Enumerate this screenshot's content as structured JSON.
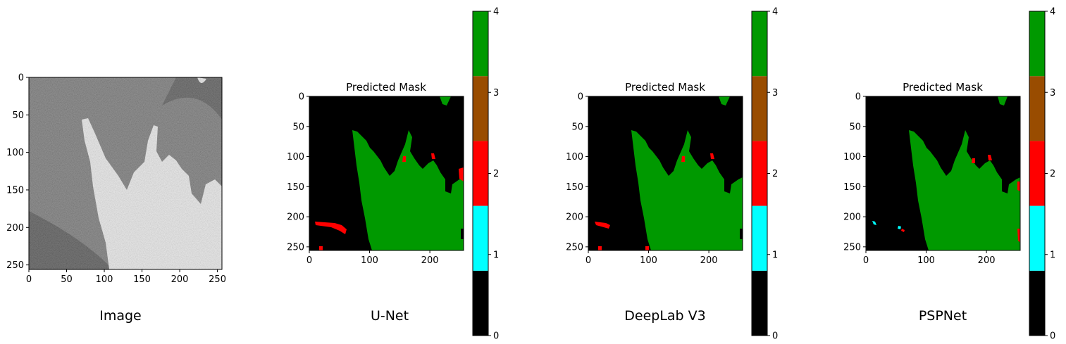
{
  "chart_data": [
    {
      "type": "image",
      "caption": "Image",
      "title": "",
      "xlim": [
        0,
        256
      ],
      "ylim": [
        0,
        256
      ],
      "xticks": [
        0,
        50,
        100,
        150,
        200,
        250
      ],
      "yticks": [
        0,
        50,
        100,
        150,
        200,
        250
      ],
      "content": "grayscale SAR image"
    },
    {
      "type": "heatmap",
      "caption": "U-Net",
      "title": "Predicted Mask",
      "xlim": [
        0,
        256
      ],
      "ylim": [
        0,
        256
      ],
      "xticks": [
        0,
        100,
        200
      ],
      "yticks": [
        0,
        50,
        100,
        150,
        200,
        250
      ],
      "colorbar": {
        "min": 0,
        "max": 4,
        "ticks": [
          0,
          1,
          2,
          3,
          4
        ],
        "colors": [
          "#000000",
          "#00ffff",
          "#ff0000",
          "#994c00",
          "#009900"
        ]
      }
    },
    {
      "type": "heatmap",
      "caption": "DeepLab V3",
      "title": "Predicted Mask",
      "xlim": [
        0,
        256
      ],
      "ylim": [
        0,
        256
      ],
      "xticks": [
        0,
        100,
        200
      ],
      "yticks": [
        0,
        50,
        100,
        150,
        200,
        250
      ],
      "colorbar": {
        "min": 0,
        "max": 4,
        "ticks": [
          0,
          1,
          2,
          3,
          4
        ],
        "colors": [
          "#000000",
          "#00ffff",
          "#ff0000",
          "#994c00",
          "#009900"
        ]
      }
    },
    {
      "type": "heatmap",
      "caption": "PSPNet",
      "title": "Predicted Mask",
      "xlim": [
        0,
        256
      ],
      "ylim": [
        0,
        256
      ],
      "xticks": [
        0,
        100,
        200
      ],
      "yticks": [
        0,
        50,
        100,
        150,
        200,
        250
      ],
      "colorbar": {
        "min": 0,
        "max": 4,
        "ticks": [
          0,
          1,
          2,
          3,
          4
        ],
        "colors": [
          "#000000",
          "#00ffff",
          "#ff0000",
          "#994c00",
          "#009900"
        ]
      }
    }
  ]
}
